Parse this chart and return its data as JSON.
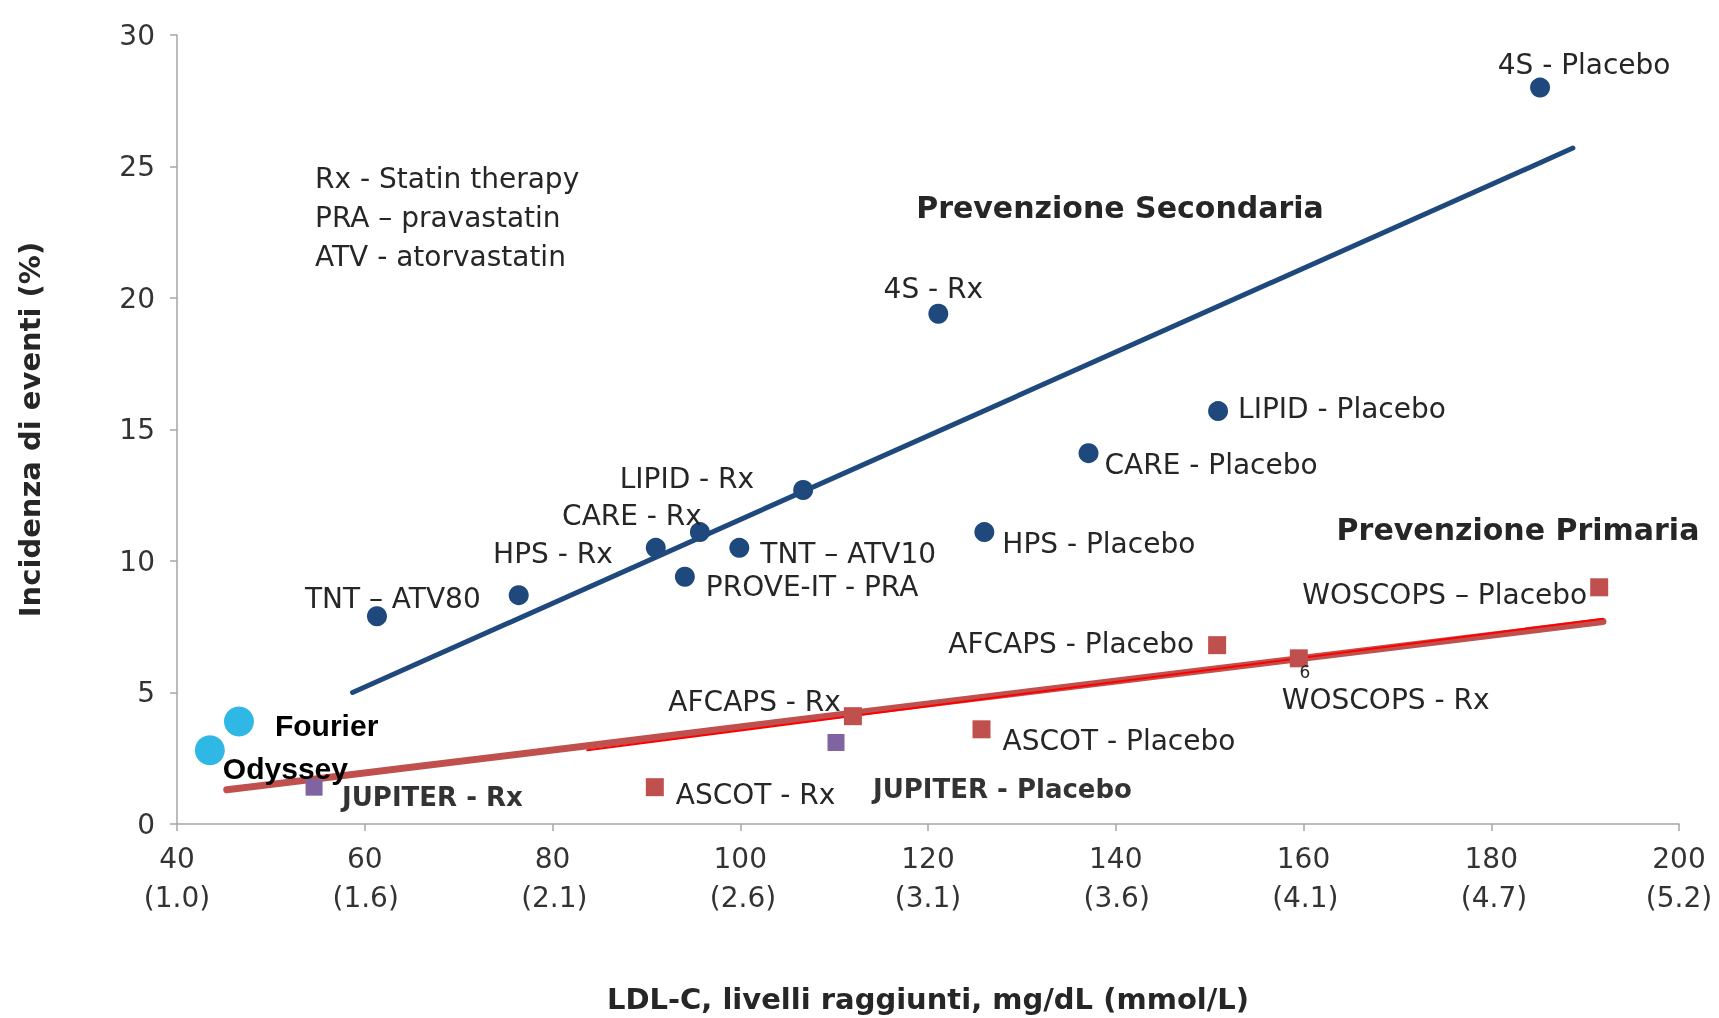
{
  "chart_data": {
    "type": "scatter",
    "xlabel": "LDL-C, livelli raggiunti, mg/dL (mmol/L)",
    "ylabel": "Incidenza di eventi (%)",
    "xlim": [
      40,
      200
    ],
    "xticks": [
      40,
      60,
      80,
      100,
      120,
      140,
      160,
      180,
      200
    ],
    "x2lim": [
      1.03,
      5.17
    ],
    "x2ticks": [
      {
        "value": 1.03,
        "label": "(1.0)"
      },
      {
        "value": 1.55,
        "label": "(1.6)"
      },
      {
        "value": 2.07,
        "label": "(2.1)"
      },
      {
        "value": 2.59,
        "label": "(2.6)"
      },
      {
        "value": 3.1,
        "label": "(3.1)"
      },
      {
        "value": 3.62,
        "label": "(3.6)"
      },
      {
        "value": 4.14,
        "label": "(4.1)"
      },
      {
        "value": 4.66,
        "label": "(4.7)"
      },
      {
        "value": 5.17,
        "label": "(5.2)"
      }
    ],
    "ylim": [
      0,
      30
    ],
    "yticks": [
      0,
      5,
      10,
      15,
      20,
      25,
      30
    ],
    "series": [
      {
        "type": "line",
        "marker": "none",
        "line_style": "solid",
        "color": "#1f497d",
        "x": [
          58.7,
          188.7
        ],
        "values": [
          5.0,
          25.7
        ]
      },
      {
        "type": "line",
        "marker": "none",
        "line_style": "solid",
        "color": "#c0504d",
        "x": [
          45.3,
          191.9
        ],
        "values": [
          1.3,
          7.7
        ]
      },
      {
        "type": "line",
        "marker": "none",
        "line_style": "solid",
        "color": "#ff0000",
        "x": [
          83.7,
          191.9
        ],
        "values": [
          2.8,
          7.8
        ]
      },
      {
        "type": "scatter",
        "marker": "circle",
        "color": "#1f497d",
        "x": [
          185.2,
          121.1,
          150.9,
          137.1,
          126.0,
          106.7,
          95.7,
          91.0,
          99.9,
          94.1,
          76.4,
          61.3
        ],
        "values": [
          28.0,
          19.4,
          15.7,
          14.1,
          11.1,
          12.7,
          11.1,
          10.5,
          10.5,
          9.4,
          8.7,
          7.9
        ]
      },
      {
        "type": "scatter",
        "marker": "square",
        "color": "#c0504d",
        "x": [
          112.0,
          90.9,
          150.8,
          125.7,
          159.5,
          191.5
        ],
        "values": [
          4.1,
          1.4,
          6.8,
          3.6,
          6.3,
          9.0
        ]
      },
      {
        "type": "scatter",
        "marker": "square",
        "color": "#8064a2",
        "x": [
          110.2,
          54.6
        ],
        "values": [
          3.1,
          1.4
        ]
      },
      {
        "type": "scatter",
        "marker": "circle",
        "color": "#2fb8e6",
        "x": [
          46.6,
          43.5
        ],
        "values": [
          3.9,
          2.8
        ]
      }
    ],
    "annotations": [
      "Rx - Statin therapy",
      "PRA – pravastatin",
      "ATV - atorvastatin",
      "Prevenzione Secondaria",
      "Prevenzione Primaria",
      {
        "text": "4S - Placebo",
        "x": 185.2,
        "y": 28.0
      },
      {
        "text": "4S - Rx",
        "x": 121.1,
        "y": 19.4
      },
      {
        "text": "LIPID - Placebo",
        "x": 150.9,
        "y": 15.7
      },
      {
        "text": "CARE - Placebo",
        "x": 137.1,
        "y": 14.1
      },
      {
        "text": "LIPID - Rx",
        "x": 106.7,
        "y": 12.7
      },
      {
        "text": "CARE - Rx",
        "x": 95.7,
        "y": 11.1
      },
      {
        "text": "HPS - Rx",
        "x": 91.0,
        "y": 10.5
      },
      {
        "text": "TNT – ATV10",
        "x": 99.9,
        "y": 10.5
      },
      {
        "text": "PROVE-IT - PRA",
        "x": 94.1,
        "y": 9.4
      },
      {
        "text": "TNT – ATV80",
        "x": 76.4,
        "y": 8.7
      },
      {
        "text": "HPS - Placebo",
        "x": 126.0,
        "y": 11.1
      },
      {
        "text": "WOSCOPS – Placebo",
        "x": 191.5,
        "y": 9.0
      },
      {
        "text": "AFCAPS - Placebo",
        "x": 150.8,
        "y": 6.8
      },
      {
        "text": "AFCAPS - Rx",
        "x": 112.0,
        "y": 4.1
      },
      {
        "text": "WOSCOPS - Rx",
        "x": 159.5,
        "y": 6.3
      },
      {
        "text": "6",
        "x": 159.5,
        "y": 6.3
      },
      {
        "text": "ASCOT - Placebo",
        "x": 125.7,
        "y": 3.6
      },
      {
        "text": "ASCOT - Rx",
        "x": 90.9,
        "y": 1.4
      },
      {
        "text": "JUPITER - Placebo",
        "x": 110.2,
        "y": 3.1
      },
      {
        "text": "JUPITER - Rx",
        "x": 54.6,
        "y": 1.4
      },
      {
        "text": "Fourier",
        "x": 46.6,
        "y": 3.9
      },
      {
        "text": "Odyssey",
        "x": 43.5,
        "y": 2.8
      }
    ]
  }
}
